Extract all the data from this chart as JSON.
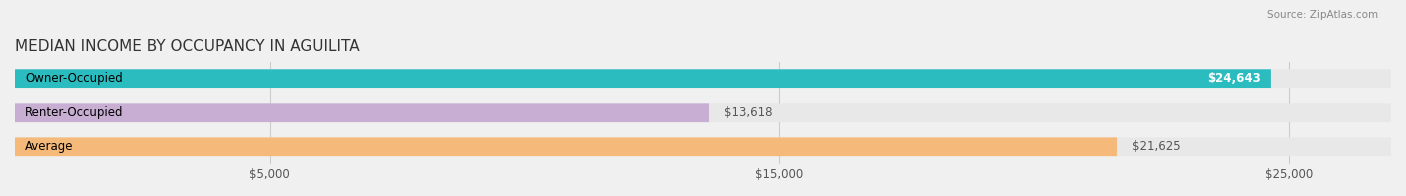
{
  "title": "MEDIAN INCOME BY OCCUPANCY IN AGUILITA",
  "source": "Source: ZipAtlas.com",
  "categories": [
    "Owner-Occupied",
    "Renter-Occupied",
    "Average"
  ],
  "values": [
    24643,
    13618,
    21625
  ],
  "bar_colors": [
    "#2bbcbf",
    "#c9aed4",
    "#f5b97a"
  ],
  "bar_labels": [
    "$24,643",
    "$13,618",
    "$21,625"
  ],
  "xlim": [
    0,
    27000
  ],
  "xticks": [
    0,
    5000,
    15000,
    25000
  ],
  "xticklabels": [
    "",
    "$5,000",
    "$15,000",
    "$25,000"
  ],
  "background_color": "#f0f0f0",
  "bar_bg_color": "#e8e8e8",
  "title_fontsize": 11,
  "label_fontsize": 8.5,
  "value_fontsize": 8.5,
  "bar_height": 0.55,
  "figsize": [
    14.06,
    1.96
  ],
  "dpi": 100
}
